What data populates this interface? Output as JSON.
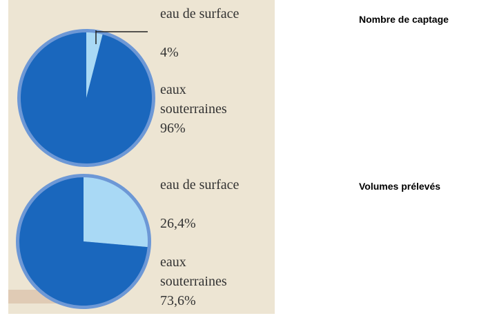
{
  "chart_data": [
    {
      "type": "pie",
      "title": "Nombre de captage",
      "categories": [
        "eau de surface",
        "eaux souterraines"
      ],
      "values": [
        4,
        96
      ],
      "value_labels": [
        "4%",
        "96%"
      ],
      "colors": [
        "#a9d9f5",
        "#1a67bd"
      ]
    },
    {
      "type": "pie",
      "title": "Volumes prélevés",
      "categories": [
        "eau de surface",
        "eaux souterraines"
      ],
      "values": [
        26.4,
        73.6
      ],
      "value_labels": [
        "26,4%",
        "73,6%"
      ],
      "colors": [
        "#a9d9f5",
        "#1a67bd"
      ]
    }
  ]
}
